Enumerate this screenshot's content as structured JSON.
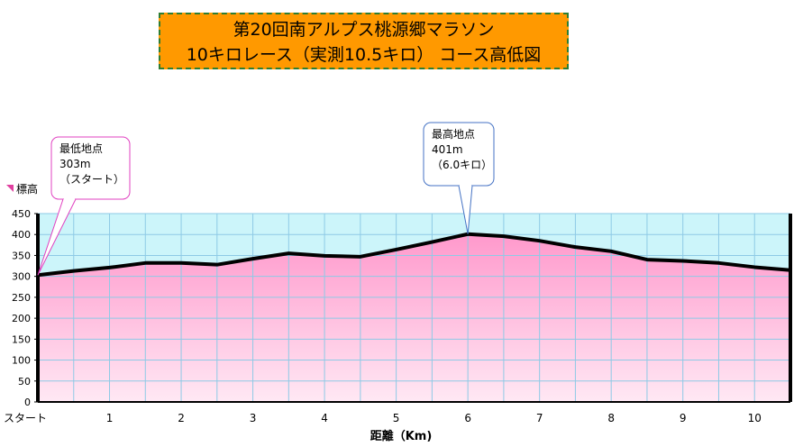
{
  "title": {
    "line1": "第20回南アルプス桃源郷マラソン",
    "line2": "10キロレース（実測10.5キロ）  コース高低図"
  },
  "chart_data": {
    "type": "area",
    "title": "第20回南アルプス桃源郷マラソン 10キロレース（実測10.5キロ）  コース高低図",
    "xlabel": "距離（Km)",
    "ylabel": "標高",
    "xlim": [
      0,
      10.5
    ],
    "ylim": [
      0,
      450
    ],
    "yticks": [
      0,
      50,
      100,
      150,
      200,
      250,
      300,
      350,
      400,
      450
    ],
    "xticks": [
      {
        "value": 0,
        "label": "スタート"
      },
      {
        "value": 1,
        "label": "1"
      },
      {
        "value": 2,
        "label": "2"
      },
      {
        "value": 3,
        "label": "3"
      },
      {
        "value": 4,
        "label": "4"
      },
      {
        "value": 5,
        "label": "5"
      },
      {
        "value": 6,
        "label": "6"
      },
      {
        "value": 7,
        "label": "7"
      },
      {
        "value": 8,
        "label": "8"
      },
      {
        "value": 9,
        "label": "9"
      },
      {
        "value": 10,
        "label": "10"
      }
    ],
    "grid": true,
    "colors": {
      "fill_top": "#ff99cc",
      "fill_bottom": "#ffe8f4",
      "band": "#ccf5fa",
      "grid": "#8ecae6",
      "line": "#000000"
    },
    "series": [
      {
        "x": [
          0,
          0.5,
          1,
          1.5,
          2,
          2.5,
          3,
          3.5,
          4,
          4.5,
          5,
          5.5,
          6,
          6.5,
          7,
          7.5,
          8,
          8.5,
          9,
          9.5,
          10,
          10.5
        ],
        "values": [
          303,
          313,
          321,
          332,
          332,
          328,
          342,
          355,
          349,
          347,
          364,
          382,
          401,
          396,
          385,
          370,
          360,
          340,
          337,
          332,
          322,
          315
        ]
      }
    ],
    "annotations": [
      {
        "name": "min",
        "lines": [
          "最低地点",
          "303m",
          "（スタート）"
        ],
        "x": 0,
        "y": 303
      },
      {
        "name": "max",
        "lines": [
          "最高地点",
          "401m",
          "（6.0キロ）"
        ],
        "x": 6,
        "y": 401
      }
    ]
  }
}
